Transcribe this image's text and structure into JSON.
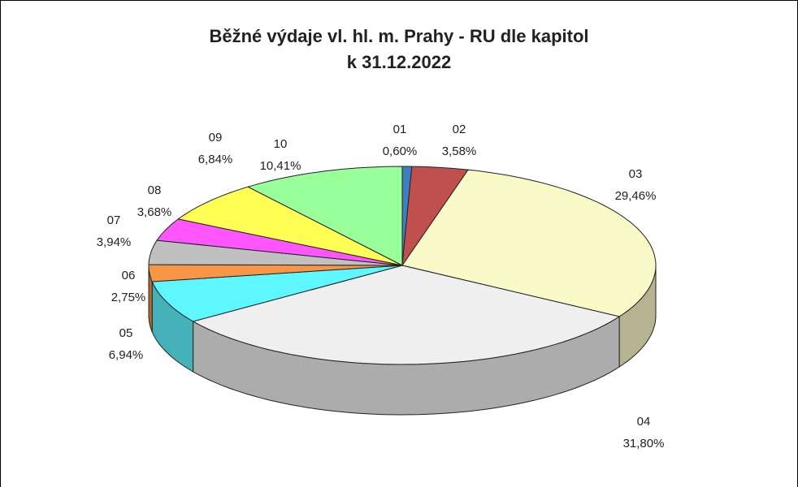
{
  "chart_data": {
    "type": "pie3d",
    "title": "Běžné výdaje vl. hl. m. Prahy - RU dle kapitol",
    "subtitle": "k 31.12.2022",
    "categories": [
      "01",
      "02",
      "03",
      "04",
      "05",
      "06",
      "07",
      "08",
      "09",
      "10"
    ],
    "values": [
      0.6,
      3.58,
      29.46,
      31.8,
      6.94,
      2.75,
      3.94,
      3.68,
      6.84,
      10.41
    ],
    "value_labels": [
      "0,60%",
      "3,58%",
      "29,46%",
      "31,80%",
      "6,94%",
      "2,75%",
      "3,94%",
      "3,68%",
      "6,84%",
      "10,41%"
    ],
    "colors": [
      "#3f7fc0",
      "#c0504d",
      "#fafac8",
      "#efefef",
      "#5ff7ff",
      "#f79646",
      "#c0c0c0",
      "#ff55ff",
      "#ffff55",
      "#99ff99"
    ]
  }
}
